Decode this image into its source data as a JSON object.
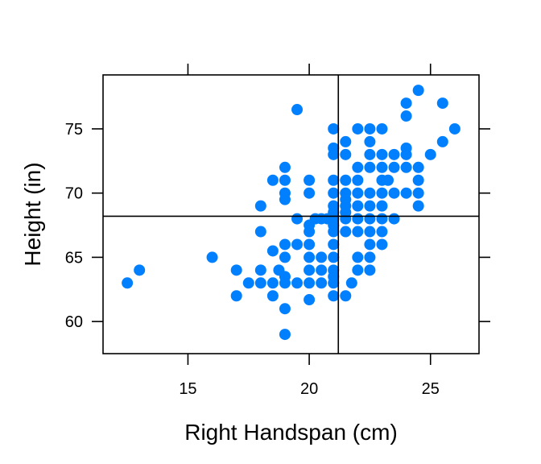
{
  "chart_data": {
    "type": "scatter",
    "title": "",
    "xlabel": "Right Handspan (cm)",
    "ylabel": "Height (in)",
    "xlim": [
      11.5,
      27
    ],
    "ylim": [
      57.5,
      79.2
    ],
    "xticks": [
      15,
      20,
      25
    ],
    "yticks": [
      60,
      65,
      70,
      75
    ],
    "xtick_labels": [
      "15",
      "20",
      "25"
    ],
    "ytick_labels": [
      "60",
      "65",
      "70",
      "75"
    ],
    "ticks_on_all_sides": true,
    "grid": false,
    "reference_lines": {
      "x": 21.2,
      "y": 68.2
    },
    "point_color": "#0080ff",
    "points": [
      [
        12.5,
        63
      ],
      [
        13,
        64
      ],
      [
        16,
        65
      ],
      [
        17,
        64
      ],
      [
        17,
        62
      ],
      [
        17.5,
        63
      ],
      [
        18,
        69
      ],
      [
        18,
        67
      ],
      [
        18,
        64
      ],
      [
        18,
        63
      ],
      [
        18.5,
        71
      ],
      [
        18.5,
        65.5
      ],
      [
        18.5,
        63
      ],
      [
        18.5,
        62
      ],
      [
        18.75,
        64
      ],
      [
        19,
        72
      ],
      [
        19,
        71
      ],
      [
        19,
        70
      ],
      [
        19,
        69.5
      ],
      [
        19,
        66
      ],
      [
        19,
        65
      ],
      [
        19,
        63.5
      ],
      [
        19,
        63
      ],
      [
        19,
        61
      ],
      [
        19,
        59
      ],
      [
        19.5,
        76.5
      ],
      [
        19.5,
        68
      ],
      [
        19.5,
        66
      ],
      [
        19.5,
        63
      ],
      [
        20,
        71
      ],
      [
        20,
        70
      ],
      [
        20,
        67.5
      ],
      [
        20,
        67
      ],
      [
        20,
        66
      ],
      [
        20,
        65
      ],
      [
        20,
        64
      ],
      [
        20,
        63
      ],
      [
        20,
        61.7
      ],
      [
        20.25,
        68
      ],
      [
        20.5,
        68
      ],
      [
        20.5,
        65
      ],
      [
        20.5,
        64
      ],
      [
        20.5,
        63
      ],
      [
        20.75,
        68
      ],
      [
        21,
        75
      ],
      [
        21,
        73.5
      ],
      [
        21,
        73
      ],
      [
        21,
        71
      ],
      [
        21,
        70
      ],
      [
        21,
        69
      ],
      [
        21,
        68.5
      ],
      [
        21,
        68
      ],
      [
        21,
        67.5
      ],
      [
        21,
        67
      ],
      [
        21,
        66
      ],
      [
        21,
        65
      ],
      [
        21,
        64
      ],
      [
        21,
        63.5
      ],
      [
        21,
        63
      ],
      [
        21,
        62
      ],
      [
        21.5,
        74
      ],
      [
        21.5,
        73
      ],
      [
        21.5,
        71
      ],
      [
        21.5,
        70
      ],
      [
        21.5,
        69.5
      ],
      [
        21.5,
        69
      ],
      [
        21.5,
        68.5
      ],
      [
        21.5,
        68
      ],
      [
        21.5,
        67
      ],
      [
        21.5,
        62
      ],
      [
        21.75,
        63
      ],
      [
        22,
        75
      ],
      [
        22,
        72
      ],
      [
        22,
        71
      ],
      [
        22,
        70
      ],
      [
        22,
        69
      ],
      [
        22,
        68
      ],
      [
        22,
        67
      ],
      [
        22,
        65
      ],
      [
        22,
        64
      ],
      [
        22.5,
        75
      ],
      [
        22.5,
        74
      ],
      [
        22.5,
        73
      ],
      [
        22.5,
        72
      ],
      [
        22.5,
        70
      ],
      [
        22.5,
        69
      ],
      [
        22.5,
        68
      ],
      [
        22.5,
        67
      ],
      [
        22.5,
        66
      ],
      [
        22.5,
        65
      ],
      [
        22.5,
        64
      ],
      [
        23,
        75
      ],
      [
        23,
        73
      ],
      [
        23,
        72
      ],
      [
        23,
        71
      ],
      [
        23,
        70
      ],
      [
        23,
        69
      ],
      [
        23,
        68
      ],
      [
        23,
        67
      ],
      [
        23,
        66
      ],
      [
        23.25,
        71
      ],
      [
        23.5,
        73
      ],
      [
        23.5,
        72
      ],
      [
        23.5,
        70
      ],
      [
        23.5,
        68
      ],
      [
        24,
        77
      ],
      [
        24,
        76
      ],
      [
        24,
        73.5
      ],
      [
        24,
        73
      ],
      [
        24,
        72
      ],
      [
        24,
        70
      ],
      [
        24.5,
        78
      ],
      [
        24.5,
        72
      ],
      [
        24.5,
        71
      ],
      [
        24.5,
        70
      ],
      [
        24.5,
        69
      ],
      [
        25,
        73
      ],
      [
        25.5,
        77
      ],
      [
        25.5,
        74
      ],
      [
        26,
        75
      ]
    ]
  }
}
